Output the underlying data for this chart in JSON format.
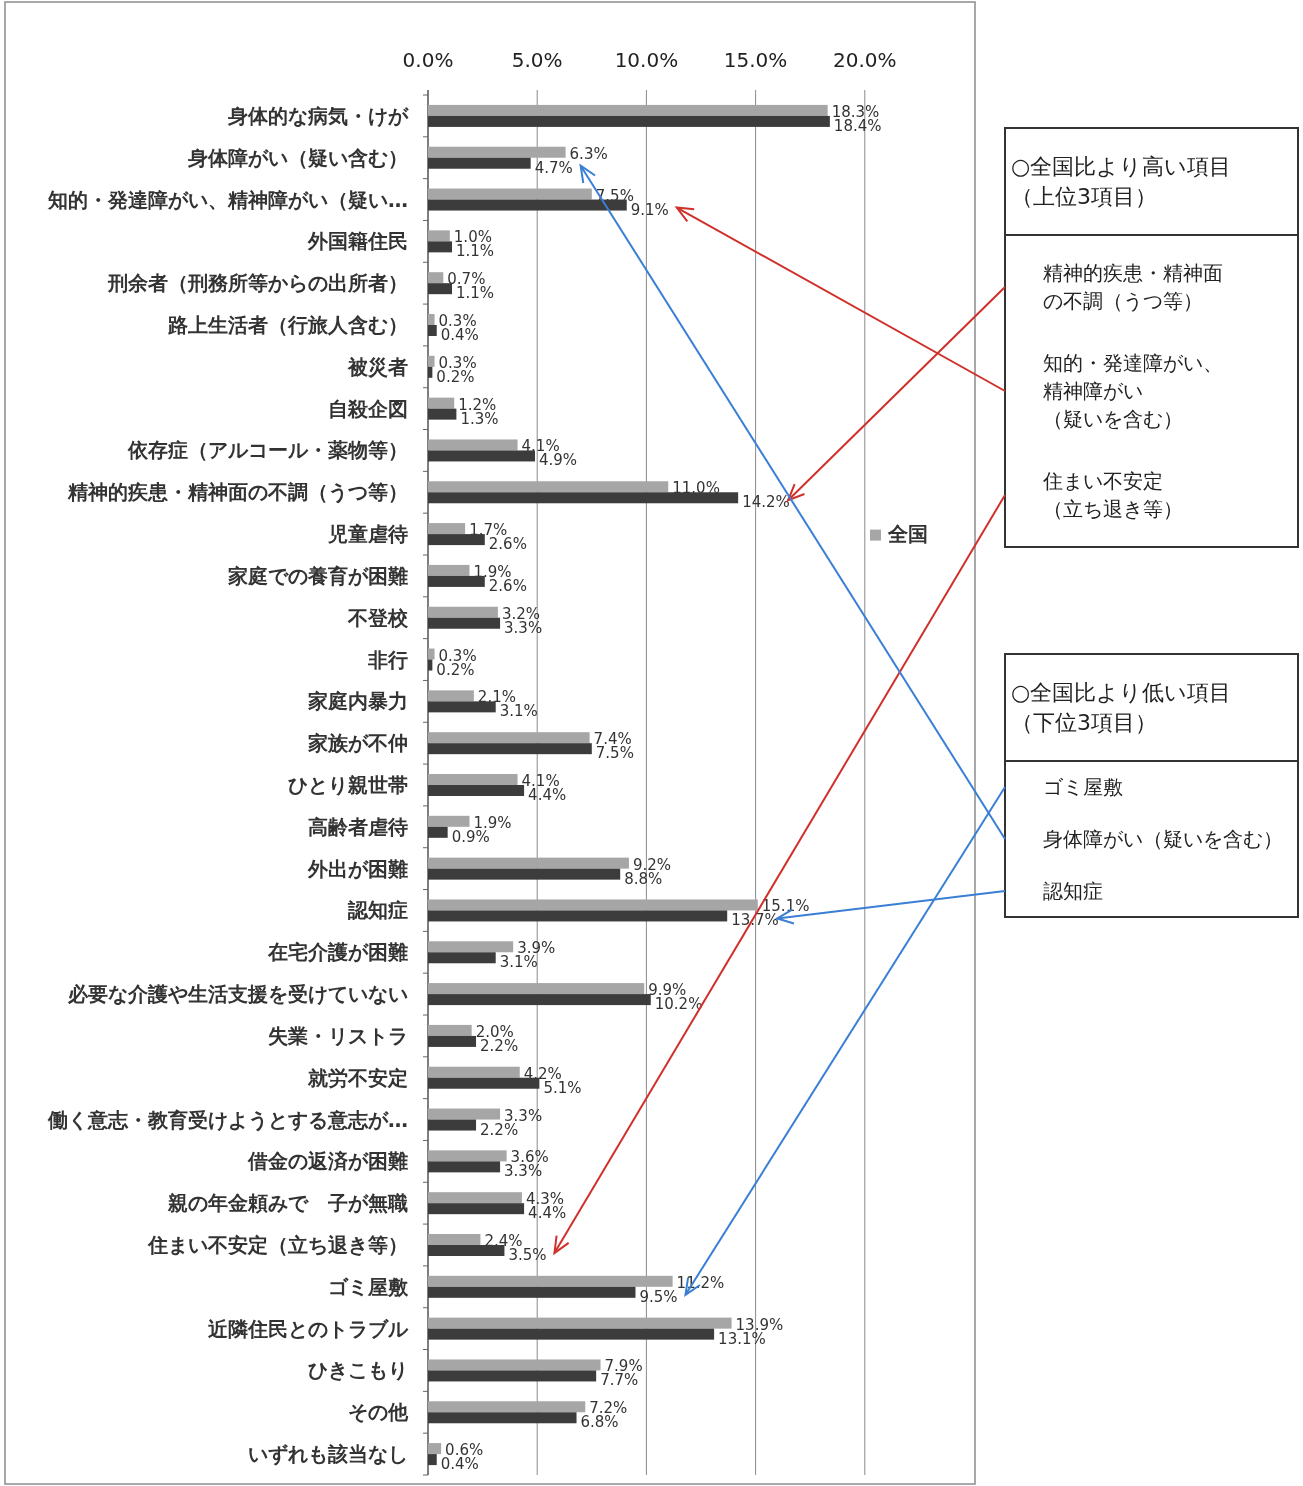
{
  "chart_data": {
    "type": "bar",
    "orientation": "horizontal",
    "categories": [
      "身体的な病気・けが",
      "身体障がい（疑い含む）",
      "知的・発達障がい、精神障がい（疑い…",
      "外国籍住民",
      "刑余者（刑務所等からの出所者）",
      "路上生活者（行旅人含む）",
      "被災者",
      "自殺企図",
      "依存症（アルコール・薬物等）",
      "精神的疾患・精神面の不調（うつ等）",
      "児童虐待",
      "家庭での養育が困難",
      "不登校",
      "非行",
      "家庭内暴力",
      "家族が不仲",
      "ひとり親世帯",
      "高齢者虐待",
      "外出が困難",
      "認知症",
      "在宅介護が困難",
      "必要な介護や生活支援を受けていない",
      "失業・リストラ",
      "就労不安定",
      "働く意志・教育受けようとする意志が…",
      "借金の返済が困難",
      "親の年金頼みで　子が無職",
      "住まい不安定（立ち退き等）",
      "ゴミ屋敷",
      "近隣住民とのトラブル",
      "ひきこもり",
      "その他",
      "いずれも該当なし"
    ],
    "series": [
      {
        "name": "全国",
        "color": "#a6a6a6",
        "values": [
          18.3,
          6.3,
          7.5,
          1.0,
          0.7,
          0.3,
          0.3,
          1.2,
          4.1,
          11.0,
          1.7,
          1.9,
          3.2,
          0.3,
          2.1,
          7.4,
          4.1,
          1.9,
          9.2,
          15.1,
          3.9,
          9.9,
          2.0,
          4.2,
          3.3,
          3.6,
          4.3,
          2.4,
          11.2,
          13.9,
          7.9,
          7.2,
          0.6
        ],
        "value_labels": [
          "18.3%",
          "6.3%",
          "7.5%",
          "1.0%",
          "0.7%",
          "0.3%",
          "0.3%",
          "1.2%",
          "4.1%",
          "11.0%",
          "1.7%",
          "1.9%",
          "3.2%",
          "0.3%",
          "2.1%",
          "7.4%",
          "4.1%",
          "1.9%",
          "9.2%",
          "15.1%",
          "3.9%",
          "9.9%",
          "2.0%",
          "4.2%",
          "3.3%",
          "3.6%",
          "4.3%",
          "2.4%",
          "11.2%",
          "13.9%",
          "7.9%",
          "7.2%",
          "0.6%"
        ]
      },
      {
        "color": "#3c3c3c",
        "values": [
          18.4,
          4.7,
          9.1,
          1.1,
          1.1,
          0.4,
          0.2,
          1.3,
          4.9,
          14.2,
          2.6,
          2.6,
          3.3,
          0.2,
          3.1,
          7.5,
          4.4,
          0.9,
          8.8,
          13.7,
          3.1,
          10.2,
          2.2,
          5.1,
          2.2,
          3.3,
          4.4,
          3.5,
          9.5,
          13.1,
          7.7,
          6.8,
          0.4
        ],
        "value_labels": [
          "18.4%",
          "4.7%",
          "9.1%",
          "1.1%",
          "1.1%",
          "0.4%",
          "0.2%",
          "1.3%",
          "4.9%",
          "14.2%",
          "2.6%",
          "2.6%",
          "3.3%",
          "0.2%",
          "3.1%",
          "7.5%",
          "4.4%",
          "0.9%",
          "8.8%",
          "13.7%",
          "3.1%",
          "10.2%",
          "2.2%",
          "5.1%",
          "2.2%",
          "3.3%",
          "4.4%",
          "3.5%",
          "9.5%",
          "13.1%",
          "7.7%",
          "6.8%",
          "0.4%"
        ]
      }
    ],
    "xlim": [
      0,
      25
    ],
    "xticks": [
      {
        "value": 0,
        "label": "0.0%"
      },
      {
        "value": 5,
        "label": "5.0%"
      },
      {
        "value": 10,
        "label": "10.0%"
      },
      {
        "value": 15,
        "label": "15.0%"
      },
      {
        "value": 20,
        "label": "20.0%"
      }
    ],
    "grid": "x",
    "legend": "right",
    "annotations": [
      "○全国比より高い項目（上位3項目）",
      "精神的疾患・精神面の不調（うつ等）",
      "知的・発達障がい、精神障がい（疑いを含む）",
      "住まい不安定（立ち退き等）",
      "○全国比より低い項目（下位3項目）",
      "ゴミ屋敷",
      "身体障がい（疑いを含む）",
      "認知症"
    ]
  }
}
